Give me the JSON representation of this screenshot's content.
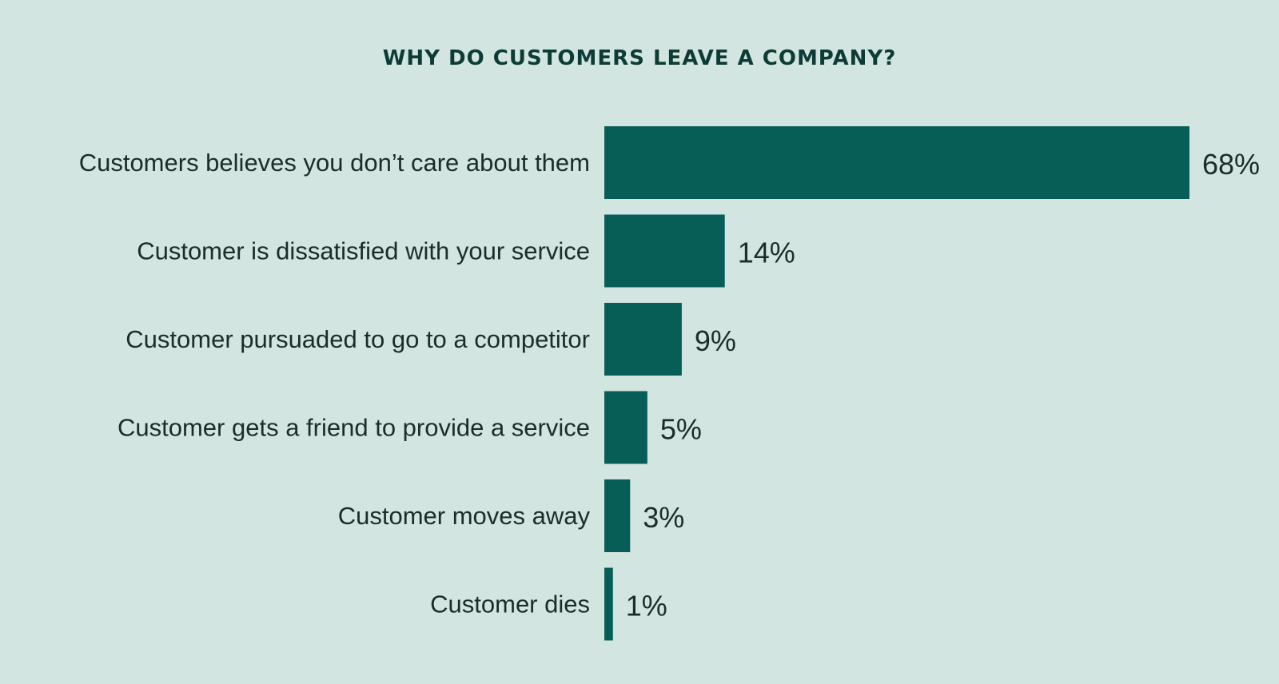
{
  "title": "WHY DO CUSTOMERS LEAVE A COMPANY?",
  "colors": {
    "background": "#d3e5e1",
    "bar": "#075e57",
    "text": "#1b2d2b",
    "title": "#0d3b35"
  },
  "chart_data": {
    "type": "bar",
    "orientation": "horizontal",
    "title": "WHY DO CUSTOMERS LEAVE A COMPANY?",
    "categories": [
      "Customers believes you don’t care about them",
      "Customer is dissatisfied with your service",
      "Customer pursuaded to go to a competitor",
      "Customer gets a friend to provide a service",
      "Customer moves away",
      "Customer dies"
    ],
    "values": [
      68,
      14,
      9,
      5,
      3,
      1
    ],
    "value_labels": [
      "68%",
      "14%",
      "9%",
      "5%",
      "3%",
      "1%"
    ],
    "xlim": [
      0,
      68
    ],
    "grid": false,
    "legend": "none"
  }
}
